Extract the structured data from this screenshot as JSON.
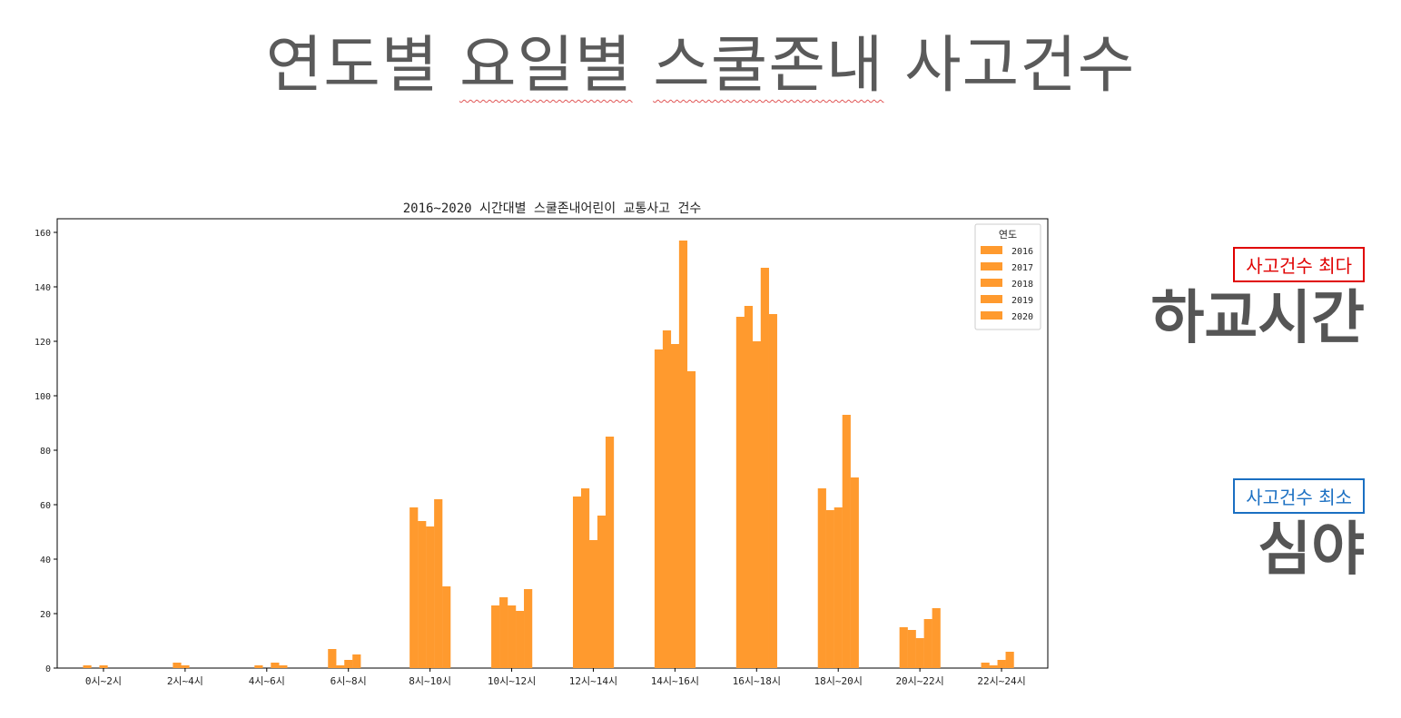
{
  "slide": {
    "title_parts": [
      "연도별 ",
      "요일별",
      " ",
      "스쿨존내",
      " 사고건수"
    ]
  },
  "callouts": {
    "max_badge": "사고건수 최다",
    "max_value": "하교시간",
    "min_badge": "사고건수 최소",
    "min_value": "심야",
    "max_color": "#e00000",
    "min_color": "#1a6fc2"
  },
  "chart_data": {
    "type": "bar",
    "title": "2016~2020 시간대별 스쿨존내어린이 교통사고 건수",
    "xlabel": "",
    "ylabel": "",
    "ylim": [
      0,
      165
    ],
    "yticks": [
      0,
      20,
      40,
      60,
      80,
      100,
      120,
      140,
      160
    ],
    "categories": [
      "0시~2시",
      "2시~4시",
      "4시~6시",
      "6시~8시",
      "8시~10시",
      "10시~12시",
      "12시~14시",
      "14시~16시",
      "16시~18시",
      "18시~20시",
      "20시~22시",
      "22시~24시"
    ],
    "legend_title": "연도",
    "legend_position": "top-right",
    "bar_color": "#ff9a2e",
    "series": [
      {
        "name": "2016",
        "values": [
          1,
          0,
          0,
          7,
          59,
          23,
          63,
          117,
          129,
          66,
          15,
          2
        ]
      },
      {
        "name": "2017",
        "values": [
          0,
          2,
          1,
          1,
          54,
          26,
          66,
          124,
          133,
          58,
          14,
          1
        ]
      },
      {
        "name": "2018",
        "values": [
          1,
          1,
          0,
          3,
          52,
          23,
          47,
          119,
          120,
          59,
          11,
          3
        ]
      },
      {
        "name": "2019",
        "values": [
          0,
          0,
          2,
          5,
          62,
          21,
          56,
          157,
          147,
          93,
          18,
          6
        ]
      },
      {
        "name": "2020",
        "values": [
          0,
          0,
          1,
          0,
          30,
          29,
          85,
          109,
          130,
          70,
          22,
          0
        ]
      }
    ]
  }
}
